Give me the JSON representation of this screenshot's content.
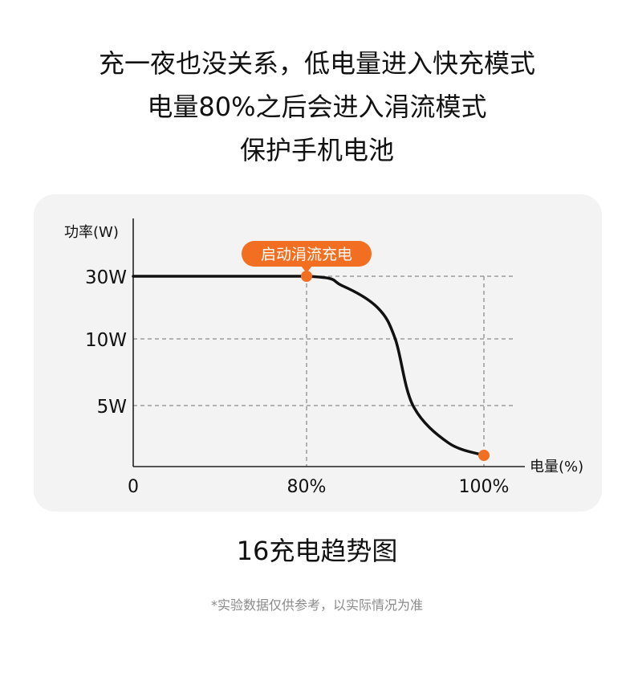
{
  "headline": {
    "lines": [
      "充一夜也没关系，低电量进入快充模式",
      "电量80%之后会进入涓流模式",
      "保护手机电池"
    ]
  },
  "chart_data": {
    "type": "line",
    "xlabel": "电量(%)",
    "ylabel": "功率(W)",
    "x_ticks": [
      {
        "label": "0",
        "value": 0
      },
      {
        "label": "80%",
        "value": 80
      },
      {
        "label": "100%",
        "value": 100
      }
    ],
    "y_ticks": [
      {
        "label": "30W",
        "value": 30
      },
      {
        "label": "10W",
        "value": 10
      },
      {
        "label": "5W",
        "value": 5
      }
    ],
    "series": [
      {
        "points": [
          {
            "x": 0,
            "y": 30
          },
          {
            "x": 80,
            "y": 30
          },
          {
            "x": 84,
            "y": 27
          },
          {
            "x": 88,
            "y": 20
          },
          {
            "x": 90,
            "y": 10
          },
          {
            "x": 92,
            "y": 5
          },
          {
            "x": 96,
            "y": 2
          },
          {
            "x": 100,
            "y": 1
          }
        ]
      }
    ],
    "markers": [
      {
        "x": 80,
        "y": 30
      },
      {
        "x": 100,
        "y": 1
      }
    ],
    "annotation": {
      "text": "启动涓流充电",
      "x": 80,
      "y": 30
    },
    "grid": "dashed",
    "accent_color": "#f26f21",
    "line_color": "#111111",
    "grid_color": "#8c8c8c"
  },
  "caption": "16充电趋势图",
  "disclaimer": "*实验数据仅供参考，以实际情况为准"
}
